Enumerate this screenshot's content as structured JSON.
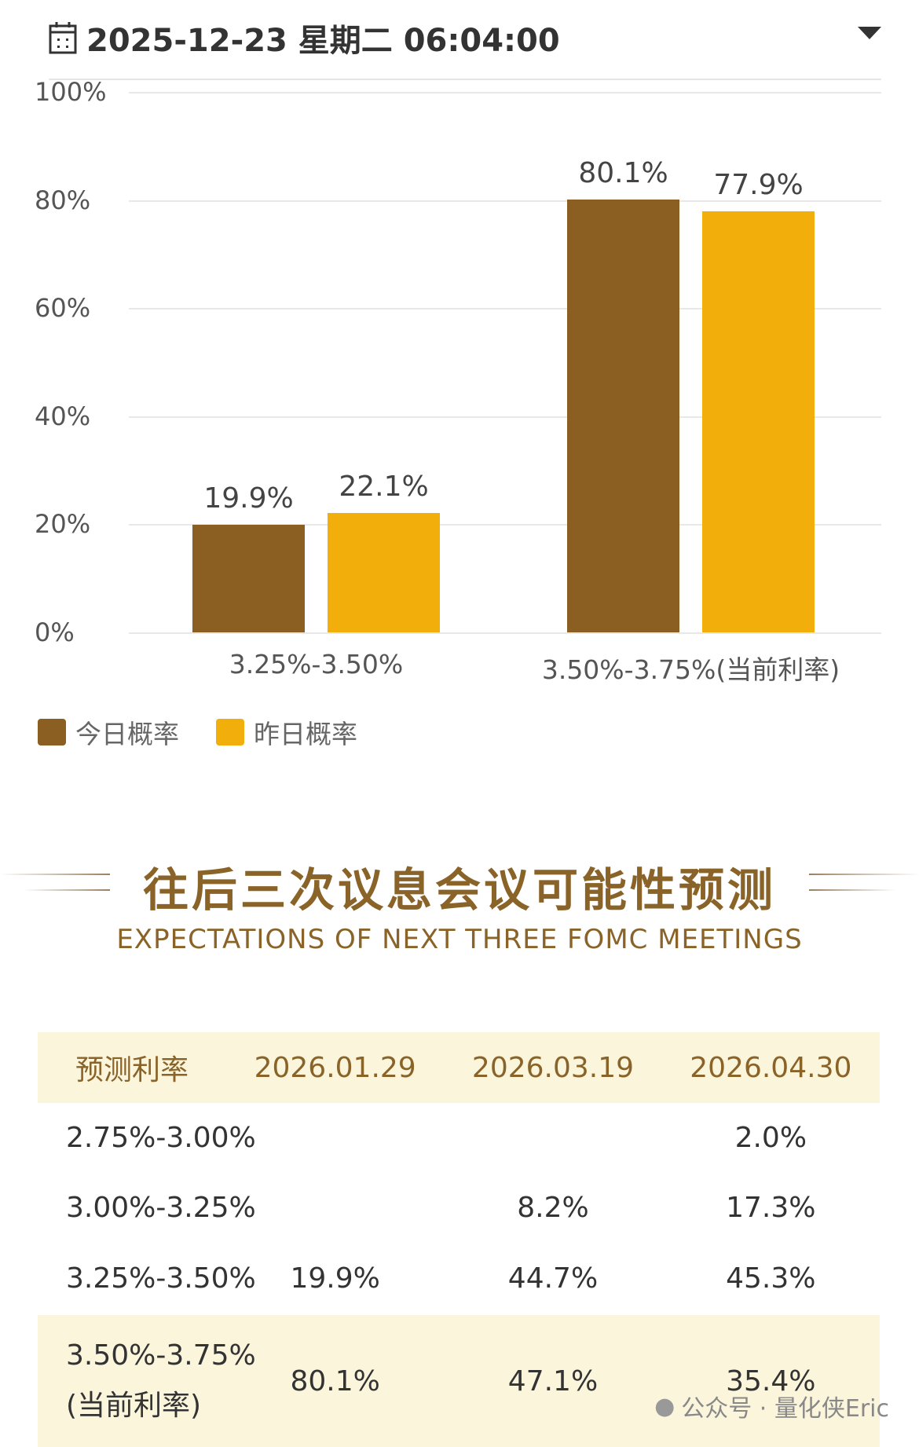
{
  "header": {
    "datetime": "2025-12-23 星期二 06:04:00"
  },
  "chart_data": {
    "type": "bar",
    "categories": [
      "3.25%-3.50%",
      "3.50%-3.75%(当前利率)"
    ],
    "series": [
      {
        "name": "今日概率",
        "values": [
          19.9,
          80.1
        ],
        "labels": [
          "19.9%",
          "80.1%"
        ],
        "color": "#8b5e22"
      },
      {
        "name": "昨日概率",
        "values": [
          22.1,
          77.9
        ],
        "labels": [
          "22.1%",
          "77.9%"
        ],
        "color": "#f2ae0a"
      }
    ],
    "yticks": [
      "100%",
      "80%",
      "60%",
      "40%",
      "20%",
      "0%"
    ],
    "ylim": [
      0,
      100
    ],
    "legend": "bottom-left"
  },
  "section": {
    "title_cn": "往后三次议息会议可能性预测",
    "title_en": "EXPECTATIONS OF NEXT THREE FOMC MEETINGS"
  },
  "table": {
    "headers": [
      "预测利率",
      "2026.01.29",
      "2026.03.19",
      "2026.04.30"
    ],
    "rows": [
      [
        "2.75%-3.00%",
        "",
        "",
        "2.0%"
      ],
      [
        "3.00%-3.25%",
        "",
        "8.2%",
        "17.3%"
      ],
      [
        "3.25%-3.50%",
        "19.9%",
        "44.7%",
        "45.3%"
      ],
      [
        "3.50%-3.75%",
        "80.1%",
        "47.1%",
        "35.4%"
      ]
    ],
    "current_note": "(当前利率)"
  },
  "footer": {
    "watermark": "公众号 · 量化侠Eric"
  }
}
